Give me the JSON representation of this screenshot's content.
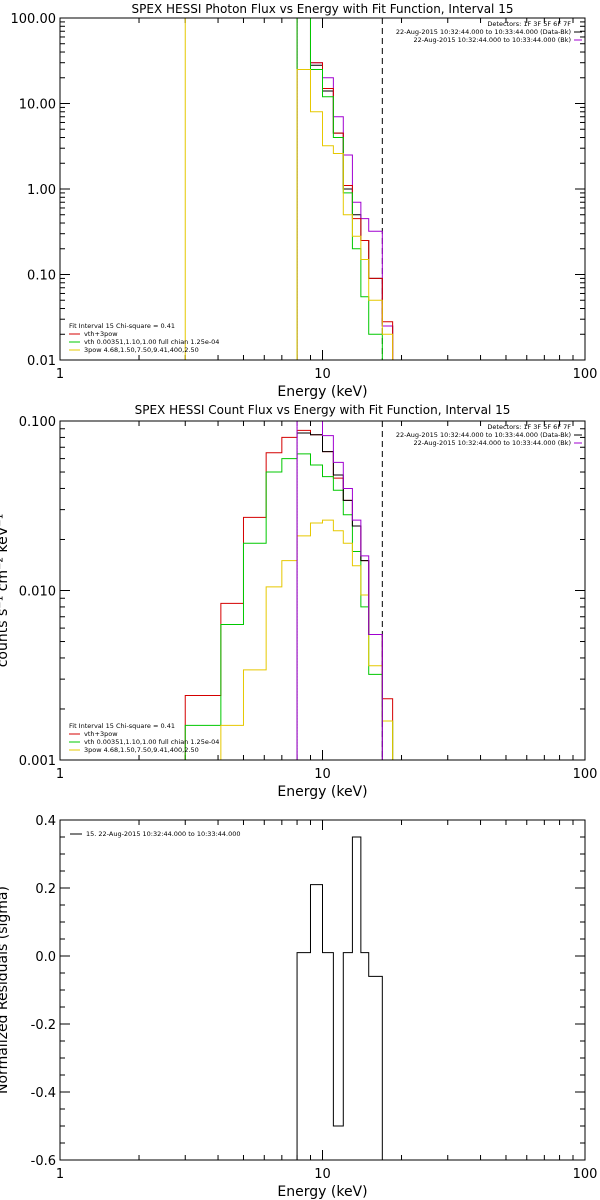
{
  "chart_data": [
    {
      "type": "line",
      "title": "SPEX HESSI Photon Flux vs Energy with Fit Function, Interval 15",
      "xlabel": "Energy (keV)",
      "ylabel": "",
      "xscale": "log",
      "yscale": "log",
      "xlim": [
        1,
        100
      ],
      "ylim": [
        0.01,
        100
      ],
      "xtick_labels": [
        "1",
        "10",
        "100"
      ],
      "ytick_values": [
        0.01,
        0.1,
        1,
        10,
        100
      ],
      "ytick_labels": [
        "0.01",
        "0.10",
        "1.00",
        "10.00",
        "100.00"
      ],
      "vlines": [
        {
          "x": 3.0,
          "style": "solid",
          "color": "#e6c800"
        },
        {
          "x": 8.0,
          "style": "dotted",
          "color": "#a000d0"
        },
        {
          "x": 16.9,
          "style": "dashed",
          "color": "#000000"
        }
      ],
      "header_lines": [
        "Detectors: 1F 3F 5F 6F 7F",
        "22-Aug-2015 10:32:44.000 to 10:33:44.000 (Data-Bk)",
        "22-Aug-2015 10:32:44.000 to 10:33:44.000 (Bk)"
      ],
      "legend_title": "Fit Interval 15   Chi-square = 0.41",
      "legend_entries": [
        {
          "label": "vth+3pow",
          "color": "#d40000"
        },
        {
          "label": "vth 0.00351,1.10,1.00  full chian 1.25e-04",
          "color": "#00c800"
        },
        {
          "label": "3pow 4.68,1.50,7.50,9.41,400,2.50",
          "color": "#e6c800"
        }
      ],
      "edges": [
        8,
        9,
        10,
        11,
        12,
        13,
        14,
        15,
        16.9,
        18.5,
        20
      ],
      "series": [
        {
          "name": "Data-Bk",
          "color": "#000000",
          "values": [
            100,
            28,
            14,
            4.5,
            1.0,
            0.5,
            0.25,
            0.09,
            0.025,
            0.01
          ]
        },
        {
          "name": "Bk",
          "color": "#a000d0",
          "values": [
            100,
            30,
            20,
            7.0,
            2.5,
            0.7,
            0.45,
            0.32,
            0.025,
            0.01
          ]
        },
        {
          "name": "vth+3pow",
          "color": "#d40000",
          "values": [
            100,
            30,
            15,
            4.5,
            1.1,
            0.45,
            0.25,
            0.09,
            0.028,
            0.01
          ]
        },
        {
          "name": "vth",
          "color": "#00c800",
          "values": [
            100,
            25,
            12,
            4.0,
            0.9,
            0.2,
            0.055,
            0.02,
            0.008,
            0.008
          ]
        },
        {
          "name": "3pow",
          "color": "#e6c800",
          "values": [
            25,
            8,
            3.2,
            2.6,
            0.5,
            0.28,
            0.15,
            0.05,
            0.02,
            0.01
          ]
        }
      ]
    },
    {
      "type": "line",
      "title": "SPEX HESSI Count Flux vs Energy with Fit Function, Interval 15",
      "xlabel": "Energy (keV)",
      "ylabel": "counts s⁻¹ cm⁻² keV⁻¹",
      "xscale": "log",
      "yscale": "log",
      "xlim": [
        1,
        100
      ],
      "ylim": [
        0.001,
        0.1
      ],
      "xtick_labels": [
        "1",
        "10",
        "100"
      ],
      "ytick_values": [
        0.001,
        0.01,
        0.1
      ],
      "ytick_labels": [
        "0.001",
        "0.010",
        "0.100"
      ],
      "vlines": [
        {
          "x": 8.0,
          "style": "dotted",
          "color": "#a000d0"
        },
        {
          "x": 16.9,
          "style": "dashed",
          "color": "#000000"
        }
      ],
      "header_lines": [
        "Detectors: 1F 3F 5F 6F 7F",
        "22-Aug-2015 10:32:44.000 to 10:33:44.000 (Data-Bk)",
        "22-Aug-2015 10:32:44.000 to 10:33:44.000 (Bk)"
      ],
      "legend_title": "Fit Interval 15   Chi-square = 0.41",
      "legend_entries": [
        {
          "label": "vth+3pow",
          "color": "#d40000"
        },
        {
          "label": "vth 0.00351,1.10,1.00  full chian 1.25e-04",
          "color": "#00c800"
        },
        {
          "label": "3pow 4.68,1.50,7.50,9.41,400,2.50",
          "color": "#e6c800"
        }
      ],
      "edges": [
        3.0,
        4.1,
        5.0,
        6.1,
        7.0,
        8.0,
        9.0,
        10.0,
        11.0,
        12.0,
        13.0,
        14.0,
        15.0,
        16.9,
        18.5
      ],
      "series": [
        {
          "name": "vth+3pow",
          "color": "#d40000",
          "values": [
            0.0024,
            0.0084,
            0.027,
            0.065,
            0.08,
            0.088,
            0.083,
            0.066,
            0.046,
            0.034,
            0.024,
            0.015,
            0.0055,
            0.0023
          ]
        },
        {
          "name": "vth",
          "color": "#00c800",
          "values": [
            0.0016,
            0.0063,
            0.019,
            0.05,
            0.06,
            0.064,
            0.055,
            0.047,
            0.039,
            0.028,
            0.017,
            0.008,
            0.0032,
            0.0017
          ]
        },
        {
          "name": "3pow",
          "color": "#e6c800",
          "values": [
            0.0,
            0.0016,
            0.0034,
            0.0105,
            0.015,
            0.021,
            0.025,
            0.026,
            0.0225,
            0.019,
            0.014,
            0.0094,
            0.0036,
            0.0017
          ]
        },
        {
          "name": "Data-Bk",
          "color": "#000000",
          "values": [
            null,
            null,
            null,
            null,
            null,
            0.085,
            0.083,
            0.066,
            0.048,
            0.034,
            0.024,
            0.015,
            0.0055,
            null
          ]
        },
        {
          "name": "Bk",
          "color": "#a000d0",
          "values": [
            null,
            null,
            null,
            null,
            null,
            0.1,
            0.1,
            0.082,
            0.057,
            0.04,
            0.026,
            0.016,
            0.0055,
            null
          ]
        }
      ]
    },
    {
      "type": "line",
      "title": "",
      "xlabel": "Energy (keV)",
      "ylabel": "Normalized Residuals (sigma)",
      "xscale": "log",
      "yscale": "linear",
      "xlim": [
        1,
        100
      ],
      "ylim": [
        -0.6,
        0.4
      ],
      "xtick_labels": [
        "1",
        "10",
        "100"
      ],
      "ytick_values": [
        0.4,
        0.2,
        0.0,
        -0.2,
        -0.4,
        -0.6
      ],
      "ytick_labels": [
        "0.4",
        "0.2",
        "0.0",
        "-0.2",
        "-0.4",
        "-0.6"
      ],
      "legend_entries": [
        {
          "label": "15. 22-Aug-2015 10:32:44.000 to 10:33:44.000",
          "color": "#000000"
        }
      ],
      "edges": [
        8,
        9,
        10,
        11,
        12,
        13,
        14,
        15,
        16.9
      ],
      "series": [
        {
          "name": "",
          "color": "#000000",
          "values": [
            0.01,
            0.21,
            0.01,
            -0.5,
            0.01,
            0.35,
            0.01,
            -0.06
          ]
        }
      ]
    }
  ]
}
